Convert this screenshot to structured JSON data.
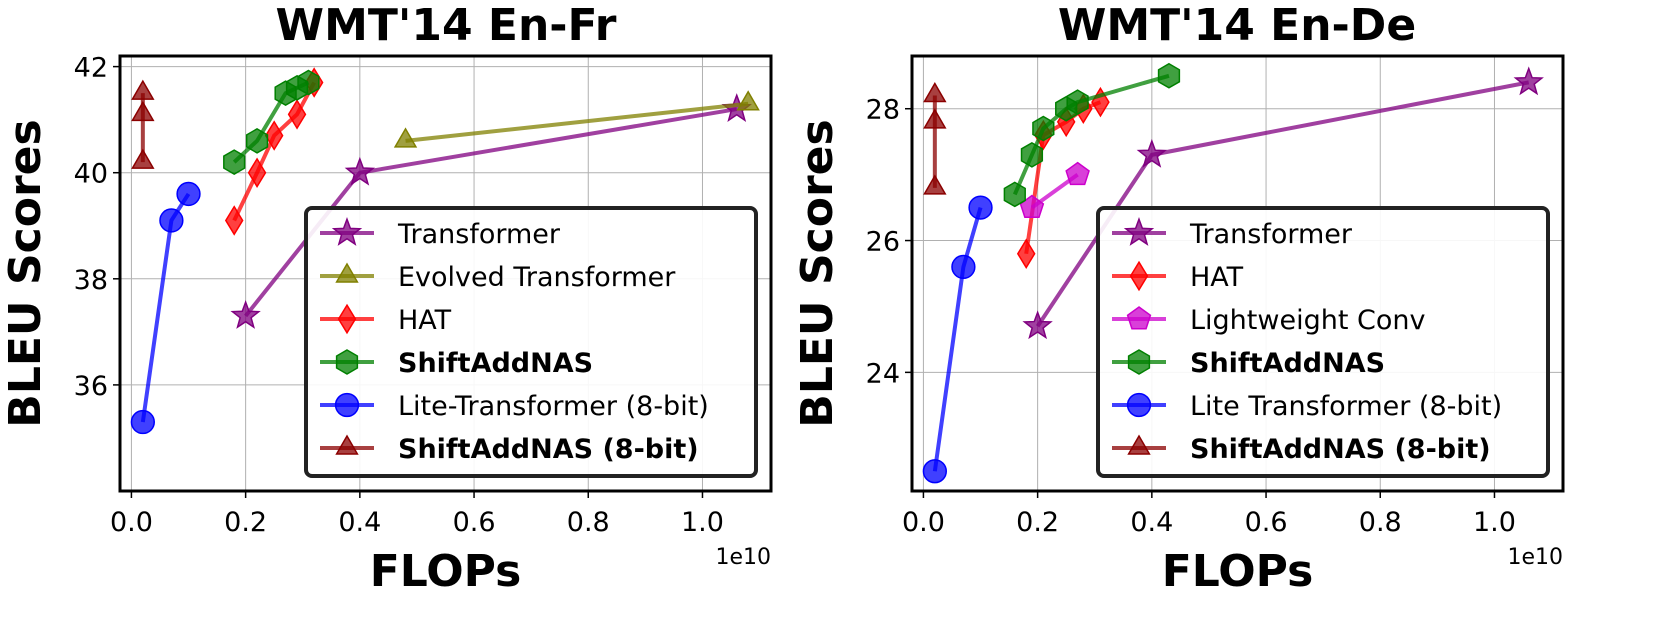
{
  "chart_data": [
    {
      "type": "line",
      "title": "WMT'14 En-Fr",
      "xlabel": "FLOPs",
      "ylabel": "BLEU Scores",
      "x_offset_label": "1e10",
      "xlim": [
        -0.02,
        1.12
      ],
      "ylim": [
        34.0,
        42.2
      ],
      "xticks": [
        0.0,
        0.2,
        0.4,
        0.6,
        0.8,
        1.0
      ],
      "xtick_labels": [
        "0.0",
        "0.2",
        "0.4",
        "0.6",
        "0.8",
        "1.0"
      ],
      "yticks": [
        36,
        38,
        40,
        42
      ],
      "ytick_labels": [
        "36",
        "38",
        "40",
        "42"
      ],
      "grid": true,
      "legend_position": "lower-right",
      "series": [
        {
          "name": "Transformer",
          "color": "#800080",
          "marker": "star",
          "bold": false,
          "x": [
            0.2,
            0.4,
            1.06
          ],
          "y": [
            37.3,
            40.0,
            41.2
          ]
        },
        {
          "name": "Evolved Transformer",
          "color": "#808000",
          "marker": "triangle",
          "bold": false,
          "x": [
            0.48,
            1.08
          ],
          "y": [
            40.6,
            41.3
          ]
        },
        {
          "name": "HAT",
          "color": "#ff0000",
          "marker": "diamond",
          "bold": false,
          "x": [
            0.18,
            0.22,
            0.25,
            0.29,
            0.32
          ],
          "y": [
            39.1,
            40.0,
            40.7,
            41.1,
            41.7
          ]
        },
        {
          "name": "ShiftAddNAS",
          "color": "#008000",
          "marker": "hexagon",
          "bold": true,
          "x": [
            0.18,
            0.22,
            0.27,
            0.29,
            0.31
          ],
          "y": [
            40.2,
            40.6,
            41.5,
            41.6,
            41.7
          ]
        },
        {
          "name": "Lite-Transformer (8-bit)",
          "color": "#0000ff",
          "marker": "circle",
          "bold": false,
          "x": [
            0.02,
            0.07,
            0.1
          ],
          "y": [
            35.3,
            39.1,
            39.6
          ]
        },
        {
          "name": "ShiftAddNAS (8-bit)",
          "color": "#8b0000",
          "marker": "triangle",
          "bold": true,
          "x": [
            0.02,
            0.02,
            0.02
          ],
          "y": [
            40.2,
            41.1,
            41.5
          ]
        }
      ]
    },
    {
      "type": "line",
      "title": "WMT'14 En-De",
      "xlabel": "FLOPs",
      "ylabel": "BLEU Scores",
      "x_offset_label": "1e10",
      "xlim": [
        -0.02,
        1.12
      ],
      "ylim": [
        22.2,
        28.8
      ],
      "xticks": [
        0.0,
        0.2,
        0.4,
        0.6,
        0.8,
        1.0
      ],
      "xtick_labels": [
        "0.0",
        "0.2",
        "0.4",
        "0.6",
        "0.8",
        "1.0"
      ],
      "yticks": [
        24,
        26,
        28
      ],
      "ytick_labels": [
        "24",
        "26",
        "28"
      ],
      "grid": true,
      "legend_position": "lower-right",
      "series": [
        {
          "name": "Transformer",
          "color": "#800080",
          "marker": "star",
          "bold": false,
          "x": [
            0.2,
            0.4,
            1.06
          ],
          "y": [
            24.7,
            27.3,
            28.4
          ]
        },
        {
          "name": "HAT",
          "color": "#ff0000",
          "marker": "diamond",
          "bold": false,
          "x": [
            0.18,
            0.21,
            0.25,
            0.28,
            0.31
          ],
          "y": [
            25.8,
            27.6,
            27.8,
            28.0,
            28.1
          ]
        },
        {
          "name": "Lightweight Conv",
          "color": "#cc00cc",
          "marker": "pentagon",
          "bold": false,
          "x": [
            0.19,
            0.27
          ],
          "y": [
            26.5,
            27.0
          ]
        },
        {
          "name": "ShiftAddNAS",
          "color": "#008000",
          "marker": "hexagon",
          "bold": true,
          "x": [
            0.16,
            0.19,
            0.21,
            0.25,
            0.27,
            0.43
          ],
          "y": [
            26.7,
            27.3,
            27.7,
            28.0,
            28.1,
            28.5
          ]
        },
        {
          "name": "Lite Transformer (8-bit)",
          "color": "#0000ff",
          "marker": "circle",
          "bold": false,
          "x": [
            0.02,
            0.07,
            0.1
          ],
          "y": [
            22.5,
            25.6,
            26.5
          ]
        },
        {
          "name": "ShiftAddNAS (8-bit)",
          "color": "#8b0000",
          "marker": "triangle",
          "bold": true,
          "x": [
            0.02,
            0.02,
            0.02
          ],
          "y": [
            26.8,
            27.8,
            28.2
          ]
        }
      ]
    }
  ]
}
